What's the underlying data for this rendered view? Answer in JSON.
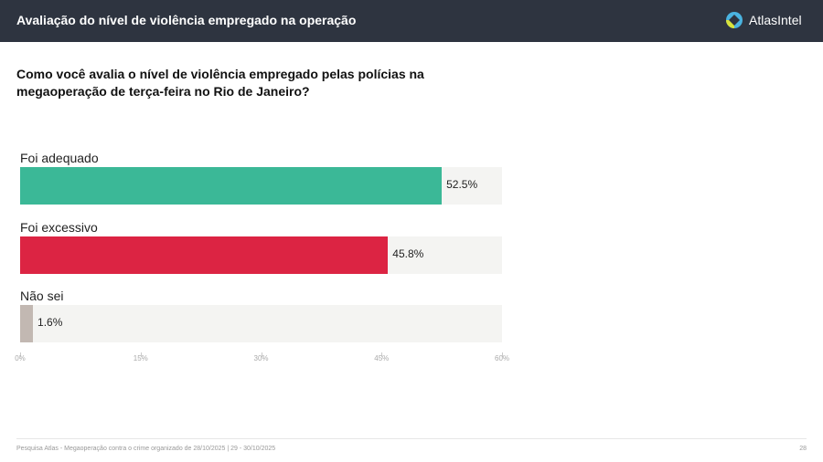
{
  "header": {
    "title": "Avaliação do nível de violência empregado na operação",
    "brand": "AtlasIntel"
  },
  "question": "Como você avalia o nível de violência empregado pelas polícias na megaoperação de terça-feira no Rio de Janeiro?",
  "chart_data": {
    "type": "bar",
    "orientation": "horizontal",
    "categories": [
      "Foi adequado",
      "Foi excessivo",
      "Não sei"
    ],
    "values": [
      52.5,
      45.8,
      1.6
    ],
    "value_labels": [
      "52.5%",
      "45.8%",
      "1.6%"
    ],
    "colors": [
      "#3bb897",
      "#dc2443",
      "#c2b8b2"
    ],
    "track_color": "#f4f4f2",
    "xlim": [
      0,
      60
    ],
    "ticks": [
      "0%",
      "15%",
      "30%",
      "45%",
      "60%"
    ],
    "tick_values": [
      0,
      15,
      30,
      45,
      60
    ],
    "grid": false
  },
  "footer": {
    "source": "Pesquisa Atlas - Megaoperação contra o crime organizado de 28/10/2025 | 29 - 30/10/2025",
    "page": "28"
  }
}
